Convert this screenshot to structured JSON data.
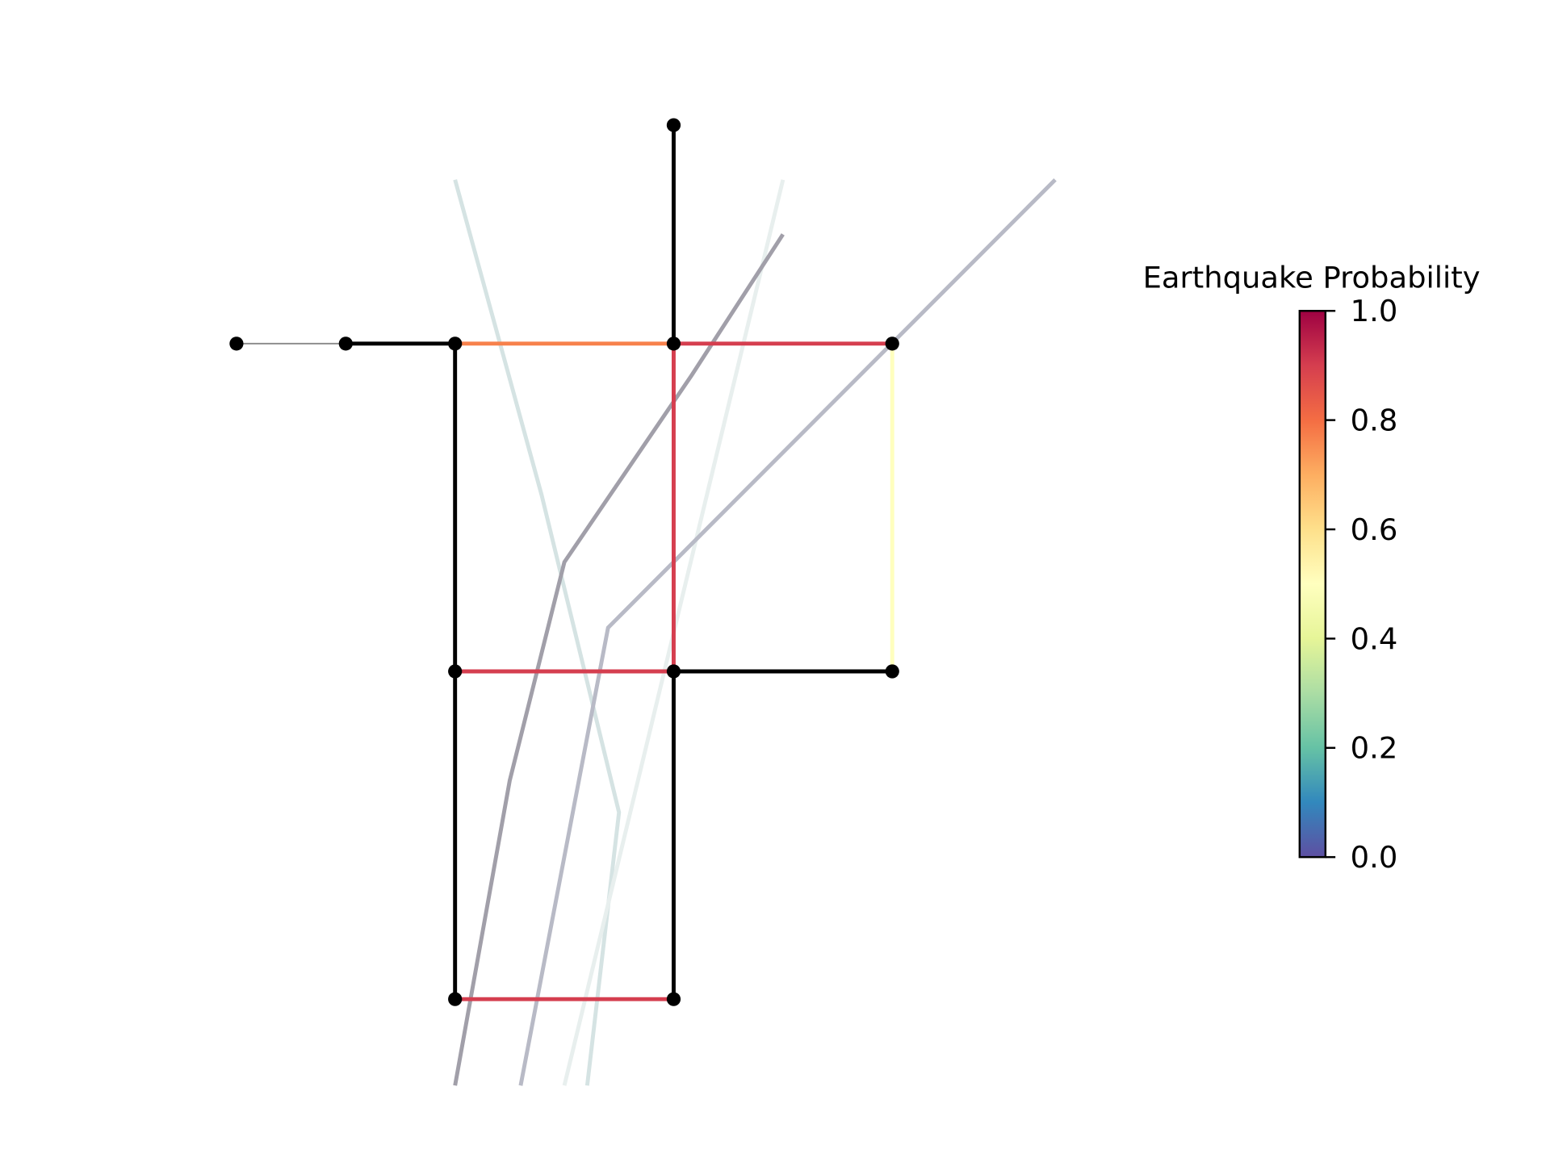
{
  "chart_data": {
    "type": "network",
    "edges": {
      "values": [
        0.77,
        0.9,
        0.9,
        0.9,
        0.9,
        0.5
      ]
    },
    "colorbar": {
      "title": "Earthquake Probability",
      "colormap": "Spectral_r",
      "lim": [
        0,
        1
      ],
      "ticks": [
        {
          "value": 0,
          "label": "0.0"
        },
        {
          "value": 0.2,
          "label": "0.2"
        },
        {
          "value": 0.4,
          "label": "0.4"
        },
        {
          "value": 0.6,
          "label": "0.6"
        },
        {
          "value": 0.8,
          "label": "0.8"
        },
        {
          "value": 1,
          "label": "1.0"
        }
      ]
    }
  }
}
